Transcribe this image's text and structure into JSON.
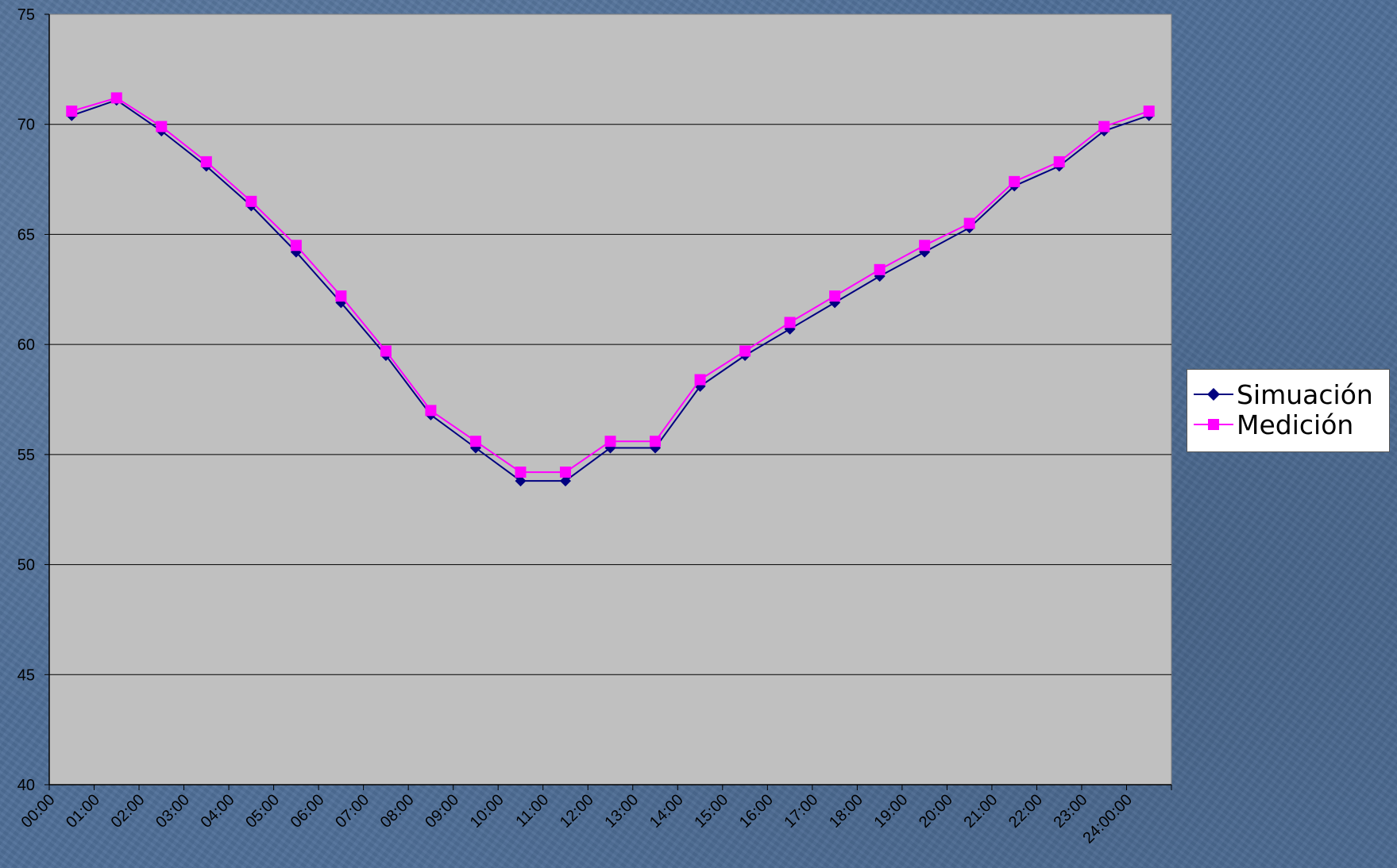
{
  "chart_data": {
    "type": "line",
    "title": "",
    "xlabel": "",
    "ylabel": "",
    "ylim": [
      40,
      75
    ],
    "yticks": [
      40,
      45,
      50,
      55,
      60,
      65,
      70,
      75
    ],
    "grid": "horizontal",
    "legend_position": "right",
    "categories": [
      "00:00",
      "01:00",
      "02:00",
      "03:00",
      "04:00",
      "05:00",
      "06:00",
      "07:00",
      "08:00",
      "09:00",
      "10:00",
      "11:00",
      "12:00",
      "13:00",
      "14:00",
      "15:00",
      "16:00",
      "17:00",
      "18:00",
      "19:00",
      "20:00",
      "21:00",
      "22:00",
      "23:00",
      "24:00:00"
    ],
    "series": [
      {
        "name": "Simuación",
        "color": "#000080",
        "marker": "diamond",
        "values": [
          70.4,
          71.1,
          69.7,
          68.1,
          66.3,
          64.2,
          61.9,
          59.5,
          56.8,
          55.3,
          53.8,
          53.8,
          55.3,
          55.3,
          58.1,
          59.5,
          60.7,
          61.9,
          63.1,
          64.2,
          65.3,
          67.2,
          68.1,
          69.7,
          70.4
        ]
      },
      {
        "name": "Medición",
        "color": "#ff00ff",
        "marker": "square",
        "values": [
          70.6,
          71.2,
          69.9,
          68.3,
          66.5,
          64.5,
          62.2,
          59.7,
          57.0,
          55.6,
          54.2,
          54.2,
          55.6,
          55.6,
          58.4,
          59.7,
          61.0,
          62.2,
          63.4,
          64.5,
          65.5,
          67.4,
          68.3,
          69.9,
          70.6
        ]
      }
    ]
  },
  "colors": {
    "page_background": "#4f6f98",
    "plot_background": "#c0c0c0",
    "gridline": "#000000"
  }
}
